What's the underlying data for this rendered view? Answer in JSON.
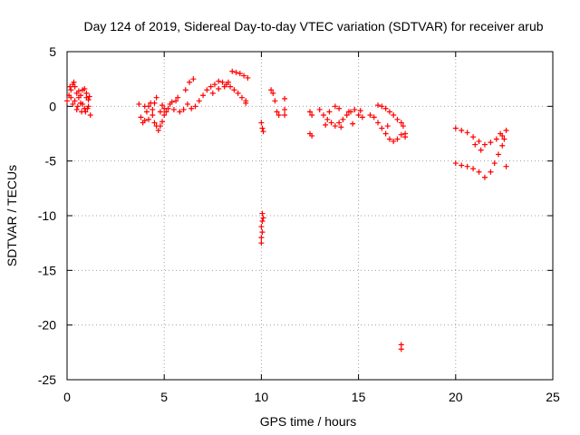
{
  "chart_data": {
    "type": "scatter",
    "title": "Day 124 of 2019, Sidereal Day-to-day VTEC variation (SDTVAR) for receiver arub",
    "xlabel": "GPS time / hours",
    "ylabel": "SDTVAR / TECUs",
    "xlim": [
      0,
      25
    ],
    "ylim": [
      -25,
      5
    ],
    "xticks": [
      0,
      5,
      10,
      15,
      20,
      25
    ],
    "yticks": [
      5,
      0,
      -5,
      -10,
      -15,
      -20,
      -25
    ],
    "grid": true,
    "marker": "+",
    "color": "#ff0000",
    "series": [
      {
        "name": "SDTVAR",
        "points": [
          [
            0.0,
            0.5
          ],
          [
            0.1,
            1.0
          ],
          [
            0.2,
            1.5
          ],
          [
            0.3,
            2.0
          ],
          [
            0.4,
            1.8
          ],
          [
            0.5,
            1.2
          ],
          [
            0.6,
            0.8
          ],
          [
            0.7,
            1.0
          ],
          [
            0.8,
            1.5
          ],
          [
            0.9,
            1.6
          ],
          [
            1.0,
            0.8
          ],
          [
            1.1,
            0.0
          ],
          [
            1.2,
            -0.8
          ],
          [
            0.3,
            0.2
          ],
          [
            0.5,
            -0.3
          ],
          [
            0.7,
            0.3
          ],
          [
            0.9,
            -0.2
          ],
          [
            0.2,
            0.8
          ],
          [
            0.6,
            1.4
          ],
          [
            1.0,
            1.2
          ],
          [
            0.4,
            0.5
          ],
          [
            0.8,
            0.2
          ],
          [
            1.1,
            0.6
          ],
          [
            0.15,
            1.8
          ],
          [
            0.35,
            2.2
          ],
          [
            0.55,
            0.0
          ],
          [
            0.75,
            -0.5
          ],
          [
            0.95,
            -0.5
          ],
          [
            1.05,
            -0.2
          ],
          [
            1.15,
            0.9
          ],
          [
            3.7,
            0.2
          ],
          [
            3.8,
            -1.0
          ],
          [
            3.9,
            -1.5
          ],
          [
            4.0,
            0.0
          ],
          [
            4.1,
            -0.5
          ],
          [
            4.2,
            -1.2
          ],
          [
            4.3,
            0.3
          ],
          [
            4.4,
            -0.8
          ],
          [
            4.5,
            -1.5
          ],
          [
            4.6,
            -1.8
          ],
          [
            4.7,
            -2.2
          ],
          [
            4.8,
            -1.8
          ],
          [
            4.9,
            -1.4
          ],
          [
            5.0,
            -0.8
          ],
          [
            5.1,
            -0.5
          ],
          [
            5.2,
            -0.2
          ],
          [
            5.3,
            0.2
          ],
          [
            5.4,
            0.4
          ],
          [
            4.5,
            0.3
          ],
          [
            4.6,
            0.8
          ],
          [
            4.2,
            0.0
          ],
          [
            4.8,
            -0.5
          ],
          [
            5.0,
            -0.2
          ],
          [
            4.4,
            -0.3
          ],
          [
            4.9,
            0.1
          ],
          [
            5.5,
            -0.3
          ],
          [
            5.6,
            0.5
          ],
          [
            5.7,
            0.8
          ],
          [
            5.8,
            -0.5
          ],
          [
            4.0,
            -1.3
          ],
          [
            6.1,
            1.5
          ],
          [
            6.3,
            2.2
          ],
          [
            6.5,
            2.5
          ],
          [
            6.2,
            0.2
          ],
          [
            6.4,
            -0.2
          ],
          [
            6.6,
            0.0
          ],
          [
            6.8,
            0.5
          ],
          [
            7.0,
            1.0
          ],
          [
            7.2,
            1.5
          ],
          [
            7.4,
            1.8
          ],
          [
            7.6,
            2.0
          ],
          [
            7.8,
            2.3
          ],
          [
            8.0,
            2.2
          ],
          [
            8.2,
            2.0
          ],
          [
            8.4,
            1.8
          ],
          [
            8.6,
            1.5
          ],
          [
            8.8,
            1.2
          ],
          [
            9.0,
            0.8
          ],
          [
            9.2,
            0.5
          ],
          [
            7.5,
            1.2
          ],
          [
            7.8,
            1.6
          ],
          [
            8.1,
            1.8
          ],
          [
            8.3,
            2.2
          ],
          [
            8.5,
            3.2
          ],
          [
            8.7,
            3.1
          ],
          [
            8.9,
            3.0
          ],
          [
            9.1,
            2.8
          ],
          [
            9.3,
            2.6
          ],
          [
            9.2,
            0.3
          ],
          [
            6.0,
            -0.3
          ],
          [
            10.0,
            -1.5
          ],
          [
            10.05,
            -2.0
          ],
          [
            10.1,
            -2.3
          ],
          [
            10.05,
            -9.8
          ],
          [
            10.05,
            -10.5
          ],
          [
            10.0,
            -11.0
          ],
          [
            10.05,
            -11.5
          ],
          [
            10.0,
            -12.0
          ],
          [
            10.0,
            -12.5
          ],
          [
            10.1,
            -10.2
          ],
          [
            10.5,
            1.5
          ],
          [
            10.6,
            1.2
          ],
          [
            10.7,
            0.5
          ],
          [
            10.8,
            -0.5
          ],
          [
            10.9,
            -0.8
          ],
          [
            11.2,
            0.7
          ],
          [
            11.2,
            -0.3
          ],
          [
            11.2,
            -0.8
          ],
          [
            12.5,
            -0.5
          ],
          [
            12.6,
            -0.8
          ],
          [
            12.5,
            -2.5
          ],
          [
            12.6,
            -2.7
          ],
          [
            13.0,
            -0.3
          ],
          [
            13.2,
            -0.8
          ],
          [
            13.4,
            -1.2
          ],
          [
            13.6,
            -1.5
          ],
          [
            13.8,
            -1.8
          ],
          [
            14.0,
            -1.5
          ],
          [
            14.2,
            -1.2
          ],
          [
            14.4,
            -0.8
          ],
          [
            14.6,
            -0.5
          ],
          [
            14.8,
            -0.3
          ],
          [
            15.0,
            -0.8
          ],
          [
            15.2,
            -1.0
          ],
          [
            13.5,
            -0.5
          ],
          [
            14.0,
            -0.2
          ],
          [
            14.5,
            -0.5
          ],
          [
            13.3,
            -1.7
          ],
          [
            14.1,
            -1.9
          ],
          [
            14.7,
            -1.6
          ],
          [
            15.1,
            -0.4
          ],
          [
            13.8,
            0.0
          ],
          [
            15.6,
            -0.8
          ],
          [
            15.8,
            -1.0
          ],
          [
            16.0,
            -1.5
          ],
          [
            16.2,
            -2.0
          ],
          [
            16.4,
            -2.5
          ],
          [
            16.6,
            -3.0
          ],
          [
            16.8,
            -3.2
          ],
          [
            17.0,
            -3.0
          ],
          [
            17.2,
            -2.6
          ],
          [
            17.4,
            -2.5
          ],
          [
            16.0,
            0.1
          ],
          [
            16.2,
            0.0
          ],
          [
            16.4,
            -0.2
          ],
          [
            16.6,
            -0.5
          ],
          [
            16.8,
            -0.8
          ],
          [
            17.0,
            -1.2
          ],
          [
            17.2,
            -1.5
          ],
          [
            17.3,
            -1.8
          ],
          [
            17.4,
            -2.8
          ],
          [
            16.5,
            -1.8
          ],
          [
            17.2,
            -21.8
          ],
          [
            17.2,
            -22.2
          ],
          [
            20.0,
            -2.0
          ],
          [
            20.3,
            -2.2
          ],
          [
            20.6,
            -2.4
          ],
          [
            20.9,
            -2.8
          ],
          [
            21.2,
            -3.2
          ],
          [
            21.5,
            -3.5
          ],
          [
            21.8,
            -3.3
          ],
          [
            22.1,
            -3.0
          ],
          [
            22.4,
            -2.7
          ],
          [
            22.6,
            -2.2
          ],
          [
            20.0,
            -5.2
          ],
          [
            20.3,
            -5.4
          ],
          [
            20.6,
            -5.5
          ],
          [
            20.9,
            -5.7
          ],
          [
            21.2,
            -6.0
          ],
          [
            21.5,
            -6.5
          ],
          [
            21.8,
            -6.0
          ],
          [
            22.0,
            -5.2
          ],
          [
            22.2,
            -4.4
          ],
          [
            22.4,
            -3.6
          ],
          [
            22.6,
            -5.5
          ],
          [
            22.5,
            -3.0
          ],
          [
            21.0,
            -3.5
          ],
          [
            21.3,
            -4.0
          ],
          [
            22.3,
            -2.5
          ]
        ]
      }
    ]
  }
}
